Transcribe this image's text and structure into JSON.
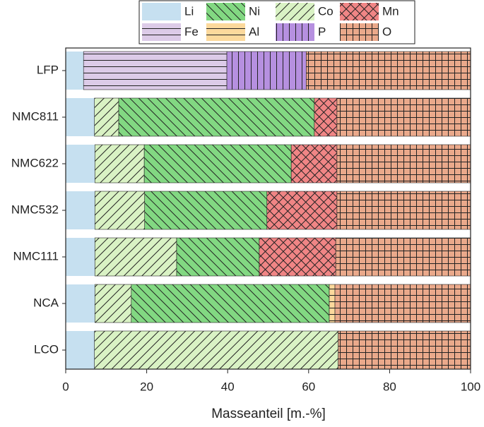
{
  "chart_data": {
    "type": "stacked-barh",
    "xlabel": "Masseanteil [m.-%]",
    "categories": [
      "LFP",
      "NMC811",
      "NMC622",
      "NMC532",
      "NMC111",
      "NCA",
      "LCO"
    ],
    "series": [
      {
        "name": "Li",
        "color": "#c6e0f0",
        "hatch": "none",
        "values": [
          4.4,
          7.1,
          7.2,
          7.2,
          7.2,
          7.2,
          7.1
        ]
      },
      {
        "name": "Co",
        "color": "#d9f2c4",
        "hatch": "/",
        "values": [
          null,
          6.0,
          12.2,
          12.3,
          20.2,
          9.0,
          60.2
        ]
      },
      {
        "name": "Fe",
        "color": "#dccbe8",
        "hatch": "-",
        "values": [
          35.4,
          null,
          null,
          null,
          null,
          null,
          null
        ]
      },
      {
        "name": "Ni",
        "color": "#82d882",
        "hatch": "\\",
        "values": [
          null,
          48.3,
          36.3,
          30.2,
          20.4,
          48.9,
          null
        ]
      },
      {
        "name": "Al",
        "color": "#fcd99c",
        "hatch": "-",
        "values": [
          null,
          null,
          null,
          null,
          null,
          1.4,
          null
        ]
      },
      {
        "name": "Mn",
        "color": "#f08585",
        "hatch": "x",
        "values": [
          null,
          5.6,
          11.3,
          17.3,
          18.9,
          null,
          null
        ]
      },
      {
        "name": "P",
        "color": "#b690e0",
        "hatch": "|",
        "values": [
          19.6,
          null,
          null,
          null,
          null,
          null,
          null
        ]
      },
      {
        "name": "O",
        "color": "#eaa98b",
        "hatch": "+",
        "values": [
          40.6,
          33.0,
          33.0,
          33.0,
          33.3,
          33.5,
          32.7
        ]
      }
    ],
    "xlim": [
      0,
      100
    ],
    "xticks": [
      0,
      20,
      40,
      60,
      80,
      100
    ],
    "legend": "top"
  }
}
